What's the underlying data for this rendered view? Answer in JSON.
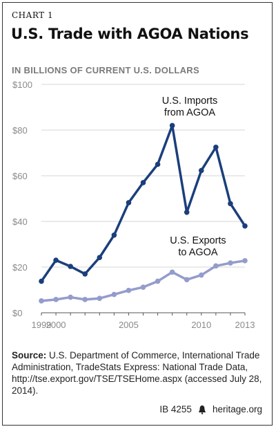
{
  "header": {
    "label": "CHART 1",
    "title": "U.S. Trade with AGOA Nations",
    "subtitle": "IN BILLIONS OF CURRENT U.S. DOLLARS"
  },
  "chart_data": {
    "type": "line",
    "title": "U.S. Trade with AGOA Nations",
    "ylabel": "IN BILLIONS OF CURRENT U.S. DOLLARS",
    "xlim": [
      1999,
      2013
    ],
    "ylim": [
      0,
      100
    ],
    "x_ticks": [
      1999,
      2000,
      2005,
      2010,
      2013
    ],
    "y_ticks": [
      0,
      20,
      40,
      60,
      80,
      100
    ],
    "y_tick_labels": [
      "$0",
      "$20",
      "$40",
      "$60",
      "$80",
      "$100"
    ],
    "grid": true,
    "x": [
      1999,
      2000,
      2001,
      2002,
      2003,
      2004,
      2005,
      2006,
      2007,
      2008,
      2009,
      2010,
      2011,
      2012,
      2013
    ],
    "series": [
      {
        "name": "U.S. Imports from AGOA",
        "label_lines": [
          "U.S. Imports",
          "from AGOA"
        ],
        "color": "#1b3f7c",
        "values": [
          13.8,
          23,
          20.3,
          17,
          24.2,
          34,
          48.2,
          57,
          65,
          82,
          44,
          62.3,
          72.5,
          47.8,
          38
        ]
      },
      {
        "name": "U.S. Exports to AGOA",
        "label_lines": [
          "U.S. Exports",
          "to AGOA"
        ],
        "color": "#949ccb",
        "values": [
          5.2,
          5.8,
          6.8,
          5.8,
          6.3,
          8,
          9.8,
          11.2,
          13.8,
          17.8,
          14.5,
          16.5,
          20.5,
          21.8,
          22.8
        ]
      }
    ]
  },
  "source": {
    "prefix": "Source:",
    "text": "U.S. Department of Commerce, International Trade Administration, TradeStats Express: National Trade Data, http://tse.export.gov/TSE/TSEHome.aspx (accessed July 28, 2014)."
  },
  "footer": {
    "ib": "IB 4255",
    "site": "heritage.org",
    "icon": "liberty-bell-icon"
  }
}
